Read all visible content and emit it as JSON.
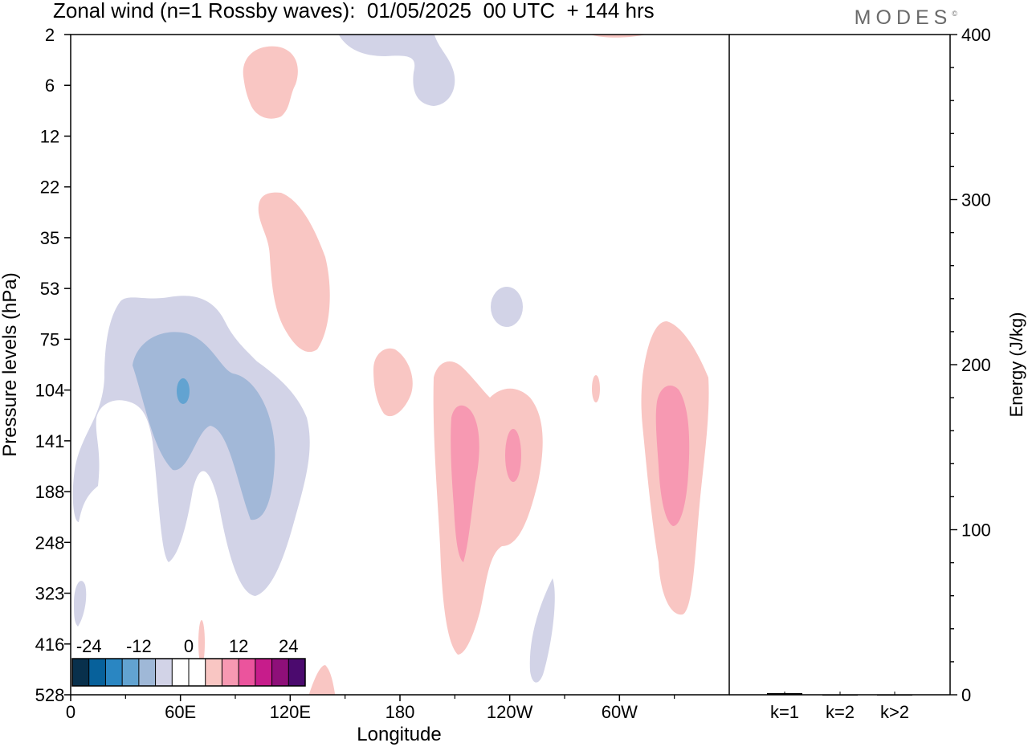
{
  "chart_data": {
    "type": "heatmap",
    "title": "Zonal wind (n=1 Rossby waves):  01/05/2025  00 UTC  + 144 hrs",
    "xlabel": "Longitude",
    "ylabel": "Pressure levels (hPa)",
    "x_ticks": [
      "0",
      "60E",
      "120E",
      "180",
      "120W",
      "60W"
    ],
    "x_tick_values": [
      0,
      60,
      120,
      180,
      240,
      300
    ],
    "xlim": [
      0,
      360
    ],
    "y_ticks": [
      "2",
      "6",
      "12",
      "22",
      "35",
      "53",
      "75",
      "104",
      "141",
      "188",
      "248",
      "323",
      "416",
      "528"
    ],
    "colorbar": {
      "tick_labels": [
        "-24",
        "-12",
        "0",
        "12",
        "24"
      ],
      "colors": [
        "#08304c",
        "#07619b",
        "#2a86c2",
        "#62a3d1",
        "#9fb8d7",
        "#d2d3e7",
        "#ffffff",
        "#ffffff",
        "#f9c6c3",
        "#f799b2",
        "#eb549d",
        "#c71c8b",
        "#8e0f79",
        "#4b0a6e"
      ]
    },
    "contours": [
      {
        "level": "-3",
        "color": "#d2d3e7",
        "shape": "large negative region 0E-130E, 53-323 hPa"
      },
      {
        "level": "-6",
        "color": "#a2b8d8",
        "shape": "negative core 45E-110E, 75-188 hPa"
      },
      {
        "level": "-9",
        "color": "#62a3d1",
        "shape": "small core near 62E, 104 hPa"
      },
      {
        "level": "3",
        "color": "#f9c6c3",
        "shape": "positive regions near 100E-145E stratosphere, 200-270E and 310-350E troposphere"
      },
      {
        "level": "6",
        "color": "#f799b2",
        "shape": "positive cores near 210E, 238E, 325E at 141 hPa"
      }
    ],
    "energy_panel": {
      "ylabel": "Energy (J/kg)",
      "ylim": [
        0,
        400
      ],
      "y_ticks": [
        "0",
        "100",
        "200",
        "300",
        "400"
      ],
      "categories": [
        "k=1",
        "k=2",
        "k>2"
      ],
      "values": [
        1,
        0,
        0
      ]
    }
  },
  "branding": {
    "logo_text": "MODES",
    "logo_mark": "©"
  }
}
